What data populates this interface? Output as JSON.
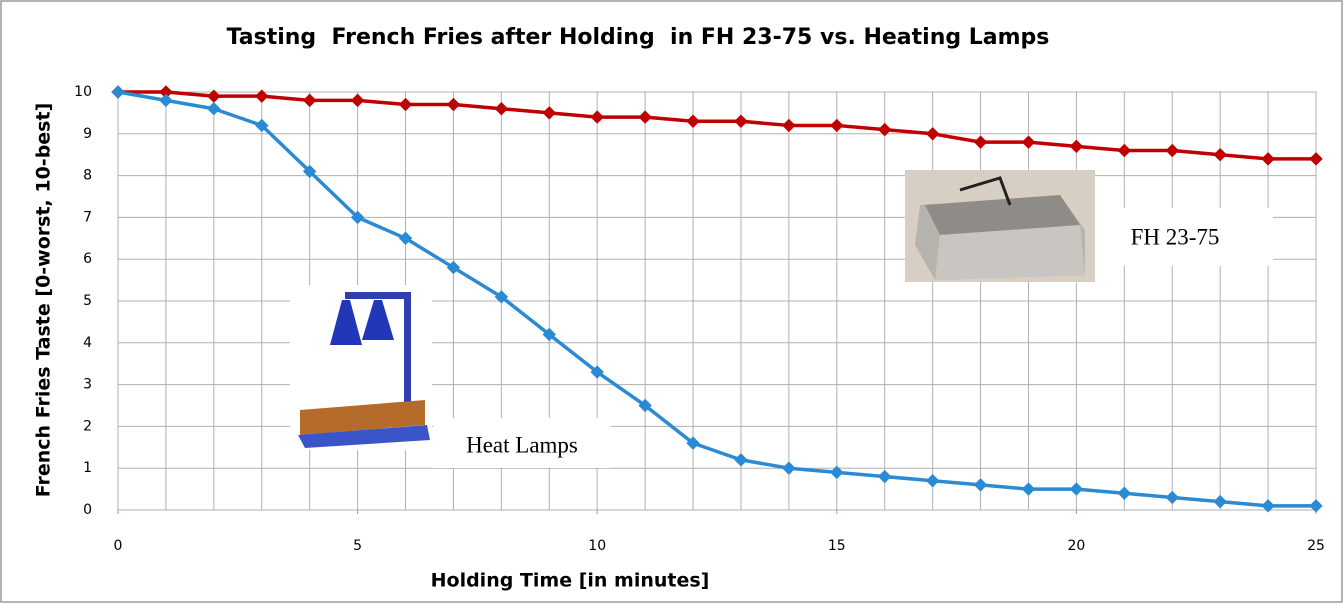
{
  "chart_data": {
    "type": "line",
    "title": "Tasting  French Fries after Holding  in FH 23-75 vs. Heating Lamps",
    "x_label": "Holding Time [in minutes]",
    "y_label": "French Fries Taste [0-worst, 10-best]",
    "x": [
      0,
      1,
      2,
      3,
      4,
      5,
      6,
      7,
      8,
      9,
      10,
      11,
      12,
      13,
      14,
      15,
      16,
      17,
      18,
      19,
      20,
      21,
      22,
      23,
      24,
      25
    ],
    "series": [
      {
        "name": "FH 23-75",
        "color": "#c00000",
        "values": [
          10,
          10,
          9.9,
          9.9,
          9.8,
          9.8,
          9.7,
          9.7,
          9.6,
          9.5,
          9.4,
          9.4,
          9.3,
          9.3,
          9.2,
          9.2,
          9.1,
          9.0,
          8.8,
          8.8,
          8.7,
          8.6,
          8.6,
          8.5,
          8.4,
          8.4
        ]
      },
      {
        "name": "Heat Lamps",
        "color": "#2a8ad4",
        "values": [
          10,
          9.8,
          9.6,
          9.2,
          8.1,
          7.0,
          6.5,
          5.8,
          5.1,
          4.2,
          3.3,
          2.5,
          1.6,
          1.2,
          1.0,
          0.9,
          0.8,
          0.7,
          0.6,
          0.5,
          0.5,
          0.4,
          0.3,
          0.2,
          0.1,
          0.1
        ]
      }
    ],
    "xlim": [
      0,
      25
    ],
    "ylim": [
      0,
      10
    ],
    "xticks": [
      0,
      5,
      10,
      15,
      20,
      25
    ],
    "yticks": [
      0,
      1,
      2,
      3,
      4,
      5,
      6,
      7,
      8,
      9,
      10
    ],
    "grid": true
  }
}
